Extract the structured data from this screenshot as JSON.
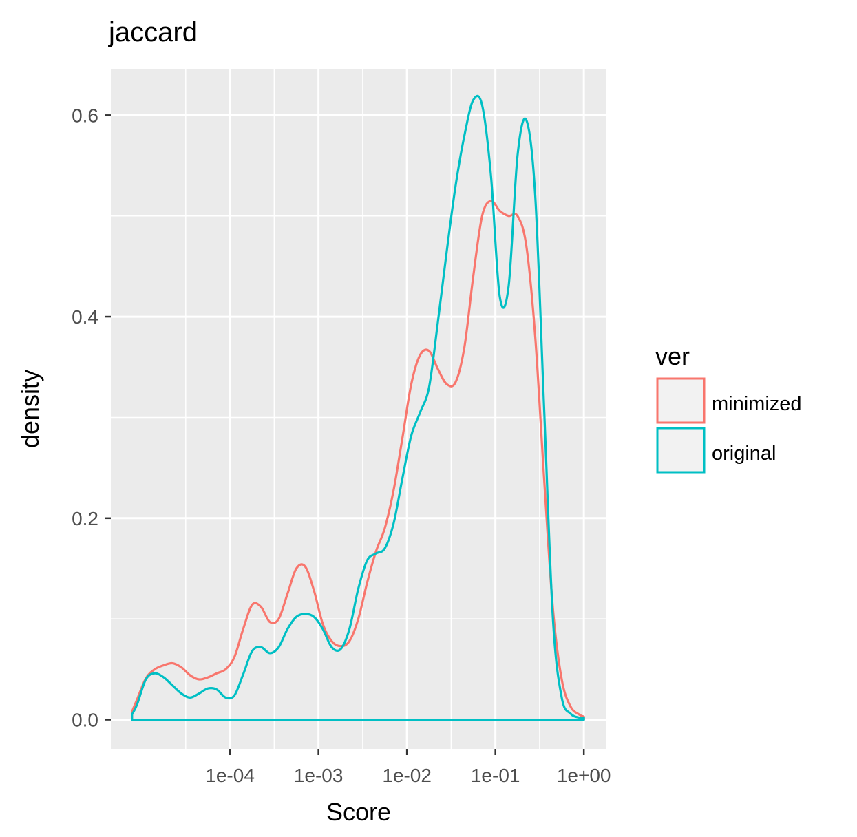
{
  "chart_data": {
    "type": "line",
    "title": "jaccard",
    "xlabel": "Score",
    "ylabel": "density",
    "x_scale": "log10",
    "xlim": [
      4.5e-06,
      1.8
    ],
    "ylim": [
      -0.029,
      0.646
    ],
    "x_ticks": [
      0.0001,
      0.001,
      0.01,
      0.1,
      1
    ],
    "x_tick_labels": [
      "1e-04",
      "1e-03",
      "1e-02",
      "1e-01",
      "1e+00"
    ],
    "y_ticks": [
      0.0,
      0.2,
      0.4,
      0.6
    ],
    "y_tick_labels": [
      "0.0",
      "0.2",
      "0.4",
      "0.6"
    ],
    "grid": true,
    "legend": {
      "title": "ver",
      "position": "right",
      "entries": [
        "minimized",
        "original"
      ]
    },
    "series": [
      {
        "name": "minimized",
        "color": "#F8766D",
        "x": [
          7.8e-06,
          8.9e-06,
          1.12e-05,
          1.41e-05,
          1.78e-05,
          2.24e-05,
          2.82e-05,
          3.55e-05,
          4.47e-05,
          5.62e-05,
          7.08e-05,
          8.91e-05,
          0.000112,
          0.000141,
          0.000178,
          0.000224,
          0.000282,
          0.000355,
          0.000447,
          0.000562,
          0.000708,
          0.000891,
          0.00112,
          0.00141,
          0.00178,
          0.00224,
          0.00282,
          0.00355,
          0.00447,
          0.00562,
          0.00708,
          0.00891,
          0.0112,
          0.0141,
          0.0178,
          0.0224,
          0.0282,
          0.0355,
          0.0447,
          0.0562,
          0.0708,
          0.0891,
          0.112,
          0.141,
          0.178,
          0.224,
          0.282,
          0.355,
          0.447,
          0.562,
          0.708,
          0.891,
          1.0
        ],
        "y": [
          0.008,
          0.02,
          0.041,
          0.05,
          0.054,
          0.056,
          0.052,
          0.044,
          0.04,
          0.042,
          0.046,
          0.05,
          0.062,
          0.09,
          0.114,
          0.112,
          0.097,
          0.1,
          0.125,
          0.15,
          0.152,
          0.128,
          0.095,
          0.078,
          0.073,
          0.078,
          0.1,
          0.136,
          0.167,
          0.19,
          0.228,
          0.28,
          0.333,
          0.362,
          0.366,
          0.348,
          0.333,
          0.335,
          0.37,
          0.44,
          0.5,
          0.515,
          0.505,
          0.5,
          0.5,
          0.47,
          0.38,
          0.24,
          0.11,
          0.04,
          0.013,
          0.005,
          0.003
        ]
      },
      {
        "name": "original",
        "color": "#00BFC4",
        "x": [
          7.8e-06,
          8.9e-06,
          1.12e-05,
          1.41e-05,
          1.78e-05,
          2.24e-05,
          2.82e-05,
          3.55e-05,
          4.47e-05,
          5.62e-05,
          7.08e-05,
          8.91e-05,
          0.000112,
          0.000141,
          0.000178,
          0.000224,
          0.000282,
          0.000355,
          0.000447,
          0.000562,
          0.000708,
          0.000891,
          0.00112,
          0.00141,
          0.00178,
          0.00224,
          0.00282,
          0.00355,
          0.00447,
          0.00562,
          0.00708,
          0.00891,
          0.0112,
          0.0141,
          0.0178,
          0.0224,
          0.0282,
          0.0355,
          0.0447,
          0.0562,
          0.0708,
          0.0891,
          0.112,
          0.141,
          0.178,
          0.224,
          0.282,
          0.355,
          0.447,
          0.562,
          0.708,
          0.891,
          1.0
        ],
        "y": [
          0.005,
          0.015,
          0.04,
          0.046,
          0.042,
          0.034,
          0.026,
          0.022,
          0.026,
          0.031,
          0.03,
          0.022,
          0.024,
          0.045,
          0.068,
          0.072,
          0.066,
          0.072,
          0.09,
          0.102,
          0.105,
          0.102,
          0.09,
          0.072,
          0.07,
          0.09,
          0.13,
          0.158,
          0.165,
          0.17,
          0.195,
          0.24,
          0.282,
          0.305,
          0.33,
          0.395,
          0.465,
          0.53,
          0.58,
          0.615,
          0.61,
          0.54,
          0.42,
          0.43,
          0.56,
          0.595,
          0.52,
          0.31,
          0.1,
          0.022,
          0.006,
          0.002,
          0.002
        ]
      }
    ]
  }
}
